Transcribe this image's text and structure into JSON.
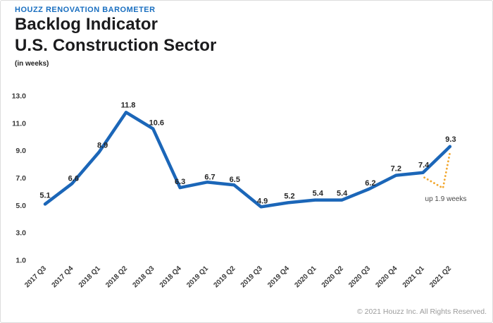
{
  "header": {
    "eyebrow": "HOUZZ RENOVATION BAROMETER",
    "title_line1": "Backlog Indicator",
    "title_line2": "U.S. Construction Sector",
    "units": "(in weeks)"
  },
  "chart_data": {
    "type": "line",
    "title": "Backlog Indicator U.S. Construction Sector",
    "units": "(in weeks)",
    "categories": [
      "2017 Q3",
      "2017 Q4",
      "2018 Q1",
      "2018 Q2",
      "2018 Q3",
      "2018 Q4",
      "2019 Q1",
      "2019 Q2",
      "2019 Q3",
      "2019 Q4",
      "2020 Q1",
      "2020 Q2",
      "2020 Q3",
      "2020 Q4",
      "2021 Q1",
      "2021 Q2"
    ],
    "values": [
      5.1,
      6.6,
      8.9,
      11.8,
      10.6,
      6.3,
      6.7,
      6.5,
      4.9,
      5.2,
      5.4,
      5.4,
      6.2,
      7.2,
      7.4,
      9.3
    ],
    "ytick_labels": [
      "13.0",
      "11.0",
      "9.0",
      "7.0",
      "5.0",
      "3.0",
      "1.0"
    ],
    "ylim": [
      1.0,
      13.0
    ],
    "grid": false,
    "legend": "none",
    "line_color": "#1b66b8",
    "label_color": "#262626",
    "axis_color": "#3a3a3a",
    "annotation": {
      "text": "up 1.9 weeks",
      "color": "#f2a72e",
      "text_color": "#4a4a4a"
    }
  },
  "footer": {
    "copyright": "© 2021 Houzz Inc. All Rights Reserved."
  }
}
